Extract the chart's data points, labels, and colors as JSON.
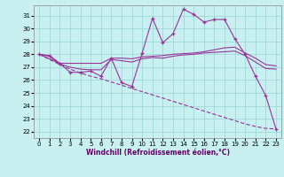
{
  "xlabel": "Windchill (Refroidissement éolien,°C)",
  "bg_color": "#c8f0f0",
  "grid_color": "#a0d8d8",
  "line_color": "#993399",
  "x_ticks": [
    0,
    1,
    2,
    3,
    4,
    5,
    6,
    7,
    8,
    9,
    10,
    11,
    12,
    13,
    14,
    15,
    16,
    17,
    18,
    19,
    20,
    21,
    22,
    23
  ],
  "y_ticks": [
    22,
    23,
    24,
    25,
    26,
    27,
    28,
    29,
    30,
    31
  ],
  "ylim": [
    21.5,
    31.8
  ],
  "xlim": [
    -0.5,
    23.5
  ],
  "line1_spiky": {
    "x": [
      0,
      1,
      2,
      3,
      4,
      5,
      6,
      7,
      8,
      9,
      10,
      11,
      12,
      13,
      14,
      15,
      16,
      17,
      18,
      19,
      20,
      21,
      22,
      23
    ],
    "y": [
      28.0,
      27.9,
      27.3,
      26.6,
      26.6,
      26.7,
      26.3,
      27.7,
      25.8,
      25.5,
      28.1,
      30.8,
      28.9,
      29.6,
      31.5,
      31.1,
      30.5,
      30.7,
      30.7,
      29.2,
      28.0,
      26.3,
      24.8,
      22.2
    ]
  },
  "line2_rising": {
    "x": [
      0,
      2,
      3,
      4,
      5,
      6,
      7,
      8,
      9,
      10,
      11,
      12,
      13,
      14,
      15,
      16,
      17,
      18,
      19,
      20,
      21,
      22,
      23
    ],
    "y": [
      28.0,
      27.3,
      27.3,
      27.3,
      27.3,
      27.3,
      27.7,
      27.7,
      27.65,
      27.8,
      27.85,
      27.9,
      28.0,
      28.05,
      28.1,
      28.2,
      28.35,
      28.5,
      28.55,
      28.1,
      27.7,
      27.2,
      27.1
    ]
  },
  "line3_mid": {
    "x": [
      0,
      1,
      2,
      3,
      4,
      5,
      6,
      7,
      8,
      9,
      10,
      11,
      12,
      13,
      14,
      15,
      16,
      17,
      18,
      19,
      20,
      21,
      22,
      23
    ],
    "y": [
      28.0,
      27.85,
      27.25,
      27.0,
      26.85,
      26.8,
      26.8,
      27.6,
      27.5,
      27.4,
      27.65,
      27.75,
      27.7,
      27.85,
      27.95,
      28.0,
      28.1,
      28.15,
      28.2,
      28.25,
      27.9,
      27.4,
      26.9,
      26.85
    ]
  },
  "line4_diagonal": {
    "x": [
      0,
      2,
      3,
      4,
      5,
      6,
      7,
      8,
      9,
      10,
      11,
      12,
      13,
      14,
      15,
      16,
      17,
      18,
      19,
      20,
      21,
      22,
      23
    ],
    "y": [
      28.0,
      27.2,
      26.85,
      26.55,
      26.3,
      26.1,
      25.85,
      25.6,
      25.35,
      25.1,
      24.85,
      24.6,
      24.35,
      24.1,
      23.85,
      23.6,
      23.35,
      23.1,
      22.85,
      22.6,
      22.4,
      22.25,
      22.2
    ]
  }
}
